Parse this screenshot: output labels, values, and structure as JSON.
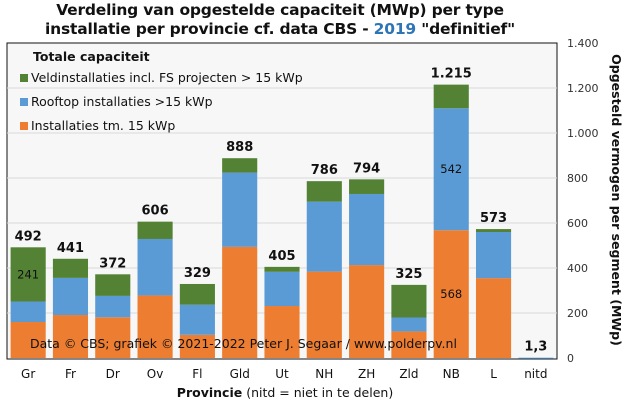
{
  "chart_data": {
    "type": "bar",
    "stacked": true,
    "title_line1": "Verdeling van opgestelde capaciteit (MWp) per type",
    "title_line2_prefix": "installatie per provincie cf. data CBS - ",
    "title_year": "2019",
    "title_line2_suffix": " \"definitief\"",
    "xlabel_bold": "Provincie",
    "xlabel_rest": " (nitd = niet in te delen)",
    "ylabel": "Opgesteld vermogen per segment (MWp)",
    "ylim": [
      0,
      1400
    ],
    "yticks": [
      0,
      200,
      400,
      600,
      800,
      1000,
      1200,
      1400
    ],
    "ytick_labels": [
      "0",
      "200",
      "400",
      "600",
      "800",
      "1.000",
      "1.200",
      "1.400"
    ],
    "grid": true,
    "legend": {
      "title": "Totale capaciteit",
      "placement": "top-left"
    },
    "categories": [
      "Gr",
      "Fr",
      "Dr",
      "Ov",
      "Fl",
      "Gld",
      "Ut",
      "NH",
      "ZH",
      "Zld",
      "NB",
      "L",
      "nitd"
    ],
    "series": [
      {
        "name": "Installaties tm. 15 kWp",
        "color": "#ed7d31",
        "values": [
          160,
          191,
          181,
          278,
          103,
          494,
          231,
          384,
          413,
          118,
          568,
          355,
          0
        ]
      },
      {
        "name": "Rooftop installaties >15 kWp",
        "color": "#5b9bd5",
        "values": [
          91,
          165,
          95,
          251,
          134,
          330,
          152,
          311,
          316,
          62,
          542,
          205,
          1.3
        ]
      },
      {
        "name": "Veldinstallaties incl. FS projecten > 15 kWp",
        "color": "#548235",
        "values": [
          241,
          85,
          96,
          77,
          92,
          64,
          22,
          91,
          65,
          145,
          105,
          13,
          0
        ]
      }
    ],
    "totals": [
      492,
      441,
      372,
      606,
      329,
      888,
      405,
      786,
      794,
      325,
      1215,
      573,
      1.3
    ],
    "total_labels": [
      "492",
      "441",
      "372",
      "606",
      "329",
      "888",
      "405",
      "786",
      "794",
      "325",
      "1.215",
      "573",
      "1,3"
    ],
    "segment_annotations": [
      {
        "category": "Gr",
        "series": "Veldinstallaties incl. FS projecten > 15 kWp",
        "label": "241"
      },
      {
        "category": "NB",
        "series": "Rooftop installaties >15 kWp",
        "label": "542"
      },
      {
        "category": "NB",
        "series": "Installaties tm. 15 kWp",
        "label": "568"
      }
    ],
    "credit": "Data © CBS; grafiek © 2021-2022 Peter J. Segaar / www.polderpv.nl"
  }
}
